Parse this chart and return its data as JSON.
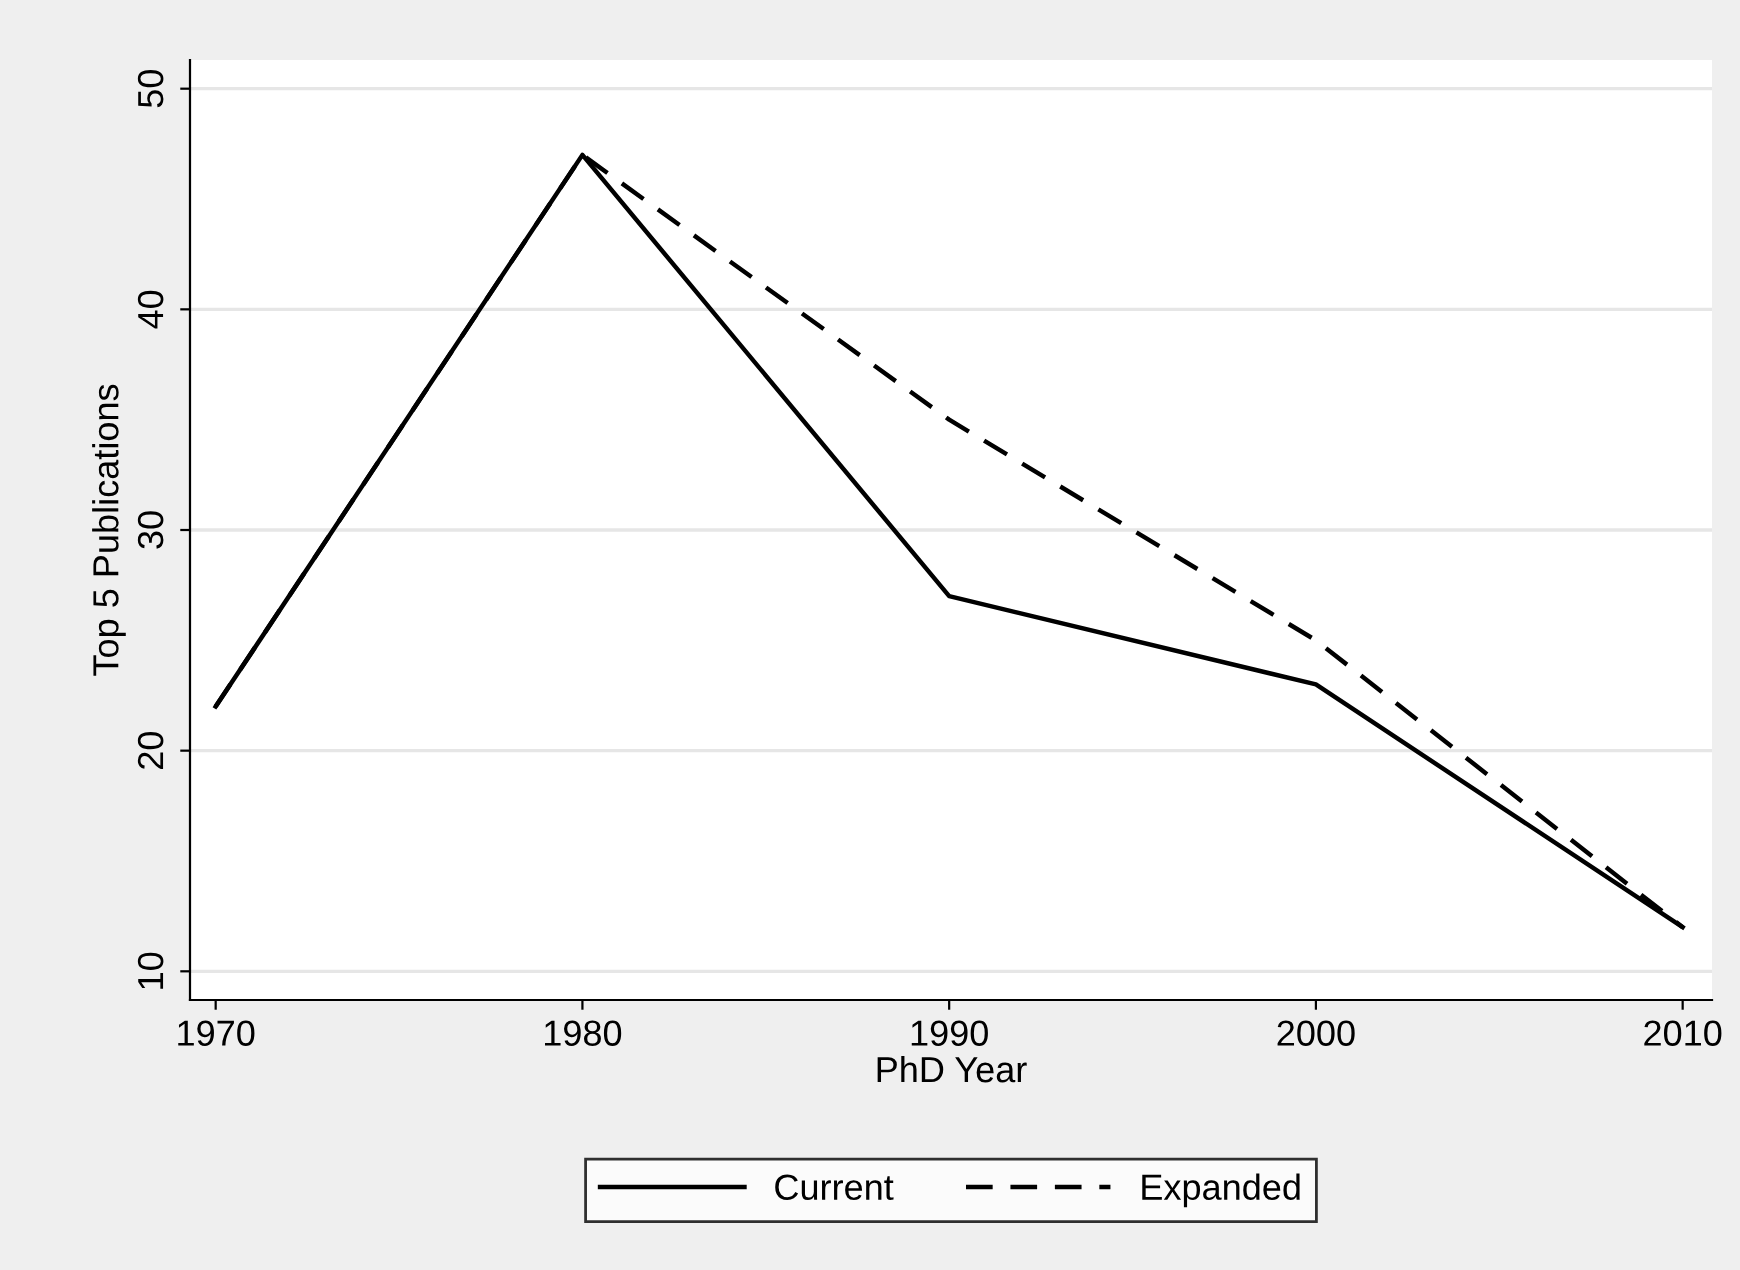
{
  "chart_data": {
    "type": "line",
    "xlabel": "PhD Year",
    "ylabel": "Top 5 Publications",
    "x": [
      1970,
      1980,
      1990,
      2000,
      2010
    ],
    "series": [
      {
        "name": "Current",
        "color": "#000000",
        "line_style": "solid",
        "values": [
          22,
          47,
          27,
          23,
          12
        ]
      },
      {
        "name": "Expanded",
        "color": "#000000",
        "line_style": "dashed",
        "values": [
          22,
          47,
          35,
          25,
          12
        ]
      }
    ],
    "xlim": [
      1969.3,
      2010.8
    ],
    "xticks": [
      1970,
      1980,
      1990,
      2000,
      2010
    ],
    "ylim": [
      8.7,
      51.3
    ],
    "yticks": [
      10,
      20,
      30,
      40,
      50
    ],
    "grid": "y",
    "legend": "bottom",
    "marker": "none"
  }
}
